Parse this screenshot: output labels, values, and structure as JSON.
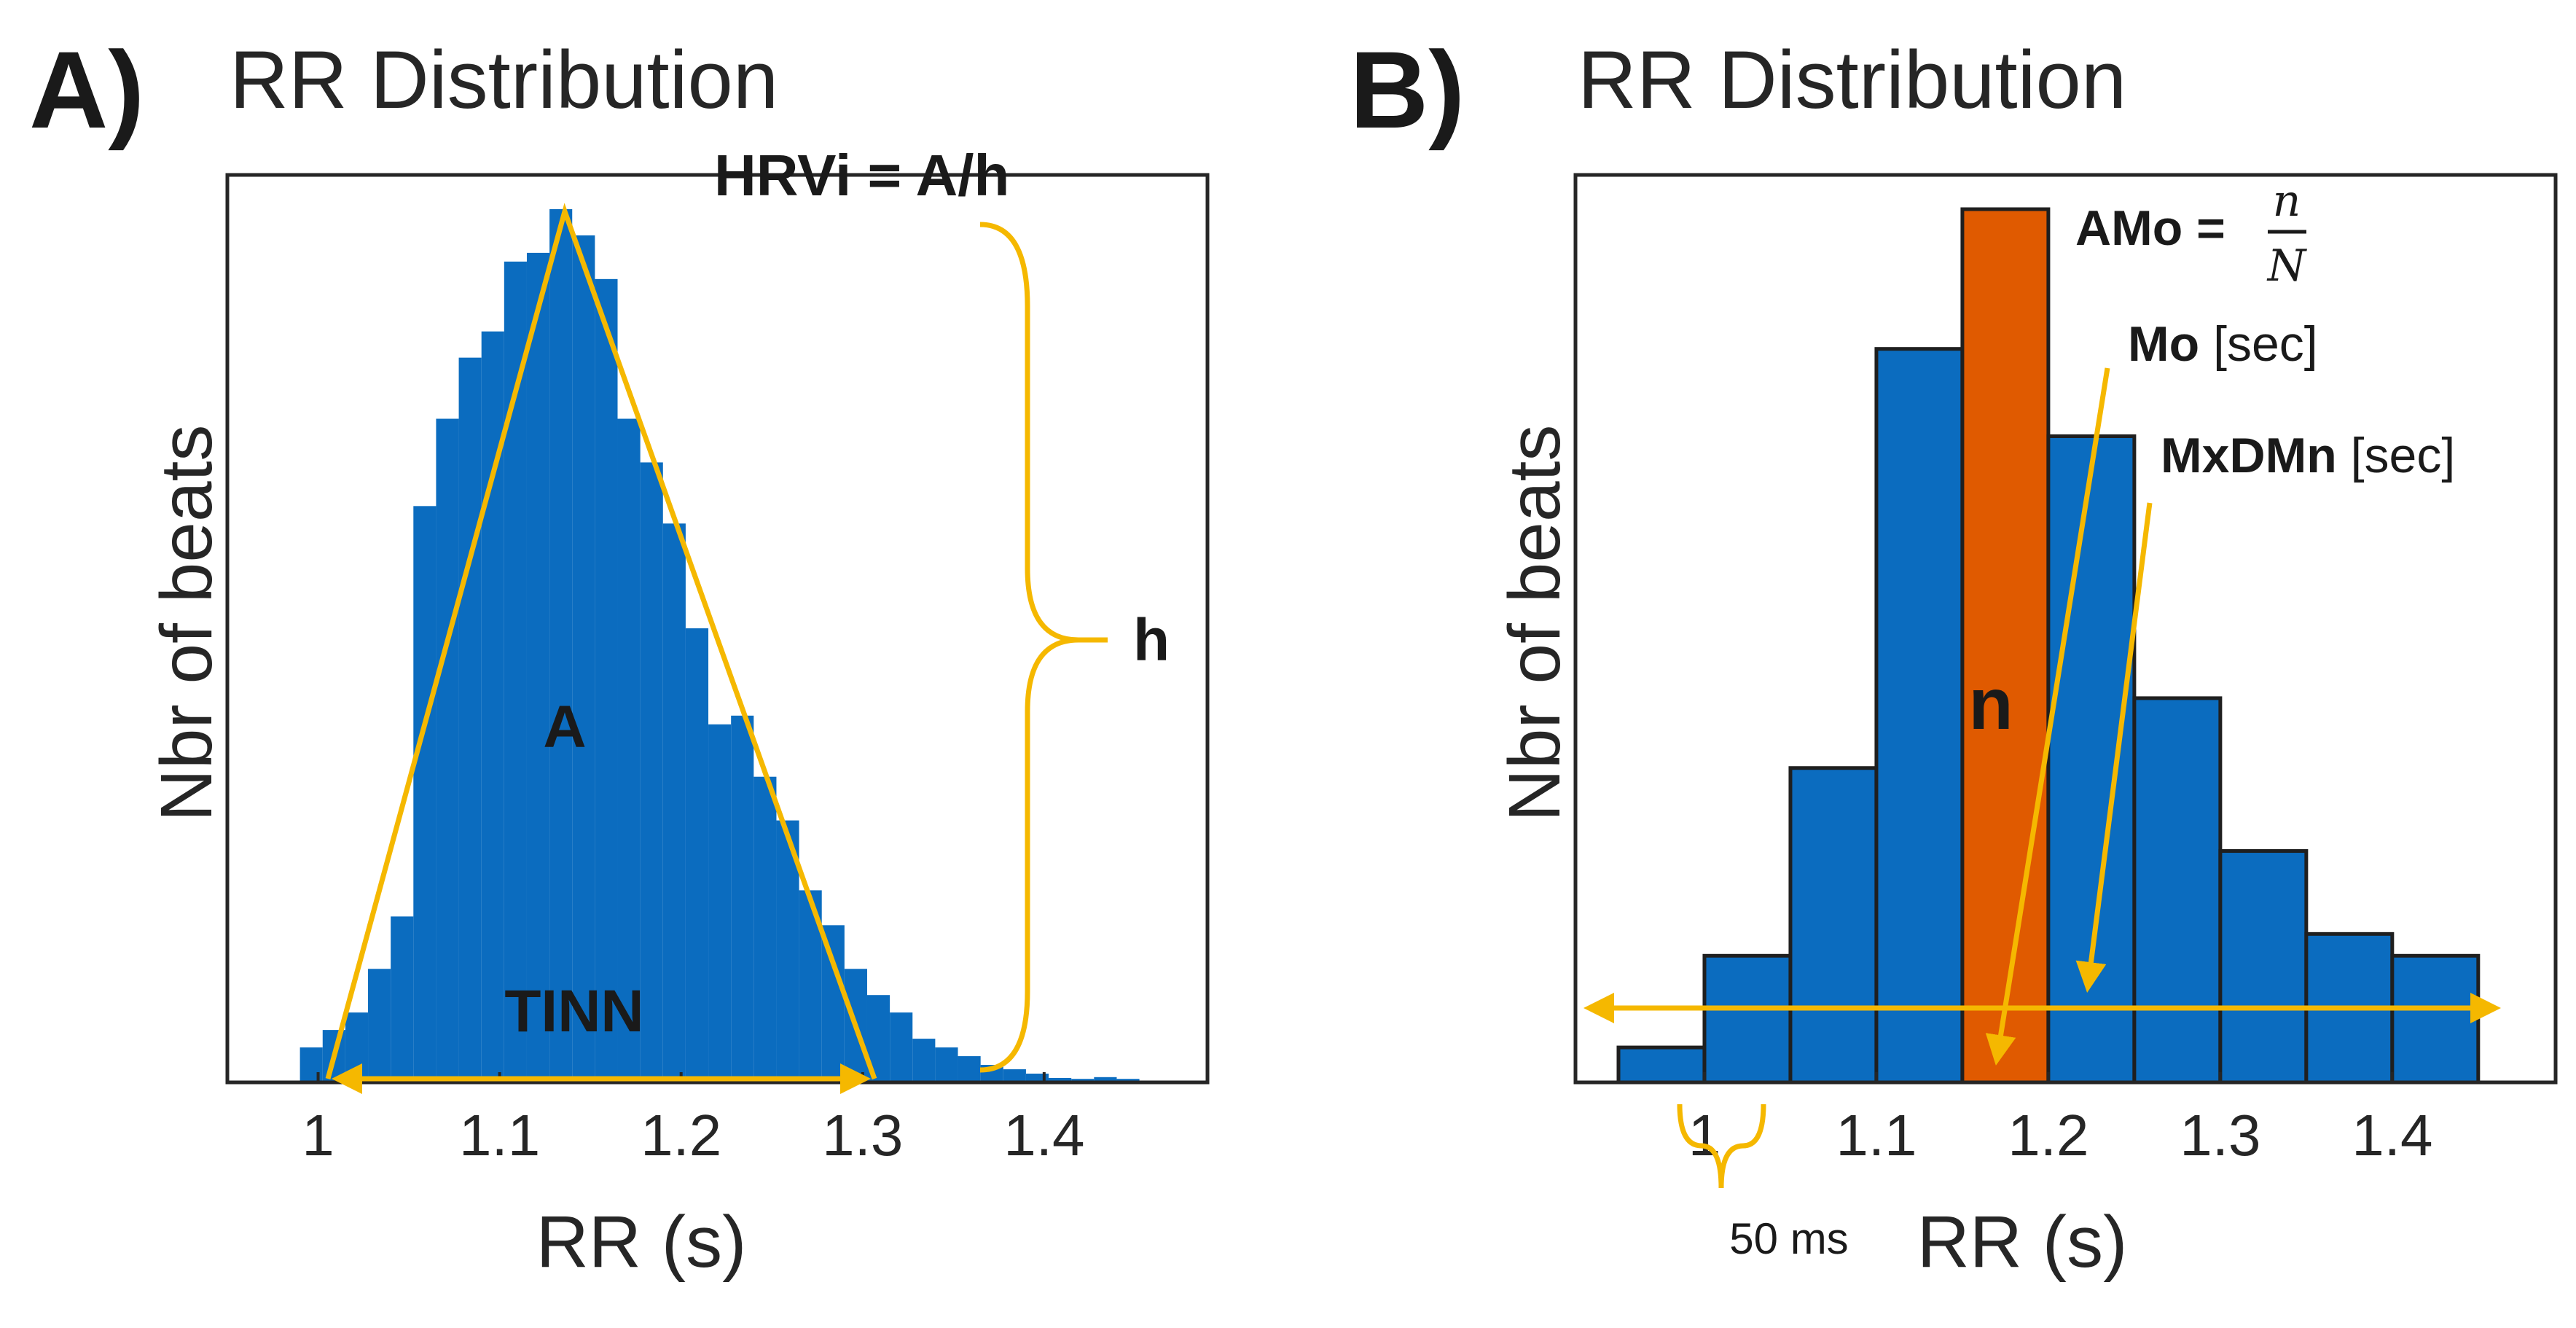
{
  "colors": {
    "blue": "#0b6cbf",
    "orange": "#e05a00",
    "gold": "#f5b800"
  },
  "panelA": {
    "letter": "A)",
    "title": "RR Distribution",
    "ylabel": "Nbr of beats",
    "xlabel": "RR (s)",
    "ann_hrvi": "HRVi = A/h",
    "ann_h": "h",
    "ann_area": "A",
    "ann_tinn": "TINN"
  },
  "panelB": {
    "letter": "B)",
    "title": "RR Distribution",
    "ylabel": "Nbr of beats",
    "xlabel": "RR (s)",
    "ann_amo": "AMo =",
    "frac_num": "n",
    "frac_den": "N",
    "ann_mo": "Mo",
    "ann_mo_unit": " [sec]",
    "ann_mxdmn": "MxDMn",
    "ann_mxdmn_unit": " [sec]",
    "ann_n": "n",
    "ann_bin": "50 ms"
  },
  "chart_data": [
    {
      "type": "bar",
      "title": "RR Distribution",
      "xlabel": "RR (s)",
      "ylabel": "Nbr of beats",
      "xlim": [
        0.95,
        1.49
      ],
      "ylim": [
        0,
        100
      ],
      "xticks": [
        1,
        1.1,
        1.2,
        1.3,
        1.4
      ],
      "bin_width": 0.0125,
      "bin_starts": [
        0.99,
        1.0025,
        1.015,
        1.0275,
        1.04,
        1.0525,
        1.065,
        1.0775,
        1.09,
        1.1025,
        1.115,
        1.1275,
        1.14,
        1.1525,
        1.165,
        1.1775,
        1.19,
        1.2025,
        1.215,
        1.2275,
        1.24,
        1.2525,
        1.265,
        1.2775,
        1.29,
        1.3025,
        1.315,
        1.3275,
        1.34,
        1.3525,
        1.365,
        1.3775,
        1.39,
        1.4025,
        1.415,
        1.4275,
        1.44
      ],
      "values": [
        4,
        6,
        8,
        13,
        19,
        66,
        76,
        83,
        86,
        94,
        95,
        100,
        97,
        92,
        76,
        71,
        64,
        52,
        41,
        42,
        35,
        30,
        22,
        18,
        13,
        10,
        8,
        5,
        4,
        3,
        2,
        1.5,
        1,
        0.5,
        0.4,
        0.6,
        0.4
      ]
    },
    {
      "type": "bar",
      "title": "RR Distribution",
      "xlabel": "RR (s)",
      "ylabel": "Nbr of beats",
      "xlim": [
        0.925,
        1.495
      ],
      "ylim": [
        0,
        100
      ],
      "xticks": [
        1,
        1.1,
        1.2,
        1.3,
        1.4
      ],
      "bin_width": 0.05,
      "bin_starts": [
        0.95,
        1.0,
        1.05,
        1.1,
        1.15,
        1.2,
        1.25,
        1.3,
        1.35,
        1.4
      ],
      "values": [
        4,
        14.5,
        36,
        84,
        100,
        74,
        44,
        26.5,
        17,
        14.5
      ],
      "highlight_bin": 4
    }
  ]
}
